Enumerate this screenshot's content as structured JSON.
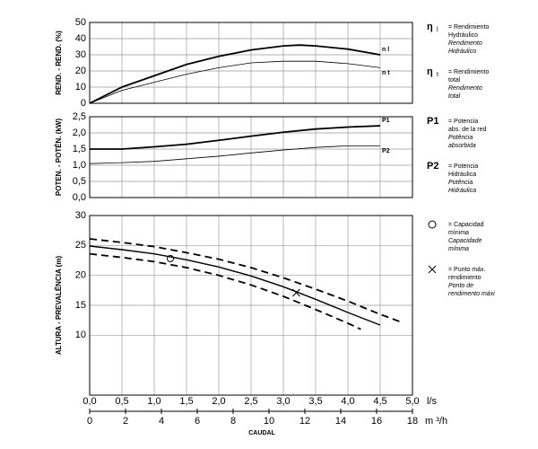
{
  "chart_data": [
    {
      "type": "line",
      "ylabel": "REND. - REND. (%)",
      "xlim": [
        0,
        5
      ],
      "xticks": [
        0,
        0.5,
        1,
        1.5,
        2,
        2.5,
        3,
        3.5,
        4,
        4.5,
        5
      ],
      "ylim": [
        0,
        50
      ],
      "yticks": [
        0,
        10,
        20,
        30,
        40,
        50
      ],
      "grid": true,
      "series": [
        {
          "name": "n l",
          "color": "#000000",
          "style": "bold",
          "x": [
            0,
            0.5,
            1,
            1.5,
            2,
            2.5,
            3,
            3.25,
            3.5,
            4,
            4.5
          ],
          "values": [
            0,
            10,
            17,
            24,
            29,
            33,
            35.5,
            36,
            35.5,
            33.5,
            30
          ]
        },
        {
          "name": "n t",
          "color": "#000000",
          "style": "thin",
          "x": [
            0,
            0.5,
            1,
            1.5,
            2,
            2.5,
            3,
            3.5,
            4,
            4.5
          ],
          "values": [
            0,
            8,
            13,
            18,
            22,
            25,
            26,
            26,
            24.5,
            22
          ]
        }
      ],
      "legend": [
        {
          "symbol": "η",
          "sub": "l",
          "lines": [
            "= Rendimiento",
            "Hydráulico",
            "Rendimento",
            "Hidráulico"
          ]
        },
        {
          "symbol": "η",
          "sub": "t",
          "lines": [
            "= Rendimiento",
            "total",
            "Rendimento",
            "total"
          ]
        }
      ]
    },
    {
      "type": "line",
      "ylabel": "POTEN. - POTÊN. (kW)",
      "xlim": [
        0,
        5
      ],
      "xticks": [
        0,
        0.5,
        1,
        1.5,
        2,
        2.5,
        3,
        3.5,
        4,
        4.5,
        5
      ],
      "ylim": [
        0,
        2.5
      ],
      "yticks": [
        {
          "value": 0,
          "label": "0,0"
        },
        {
          "value": 0.5,
          "label": "0,5"
        },
        {
          "value": 1,
          "label": "1,0"
        },
        {
          "value": 1.5,
          "label": "1,5"
        },
        {
          "value": 2,
          "label": "2,0"
        },
        {
          "value": 2.5,
          "label": "2,5"
        }
      ],
      "grid": true,
      "series": [
        {
          "name": "P1",
          "color": "#000000",
          "style": "bold",
          "x": [
            0,
            0.5,
            1,
            1.5,
            2,
            2.5,
            3,
            3.5,
            4,
            4.5
          ],
          "values": [
            1.5,
            1.5,
            1.57,
            1.65,
            1.77,
            1.9,
            2.02,
            2.12,
            2.18,
            2.22
          ]
        },
        {
          "name": "P2",
          "color": "#000000",
          "style": "thin",
          "x": [
            0,
            0.5,
            1,
            1.5,
            2,
            2.5,
            3,
            3.5,
            4,
            4.5
          ],
          "values": [
            1.05,
            1.08,
            1.12,
            1.2,
            1.28,
            1.38,
            1.47,
            1.55,
            1.6,
            1.6
          ]
        }
      ],
      "legend": [
        {
          "symbol": "P1",
          "lines": [
            "= Potencia",
            "abs. de la red",
            "Potência",
            "absorbida"
          ]
        },
        {
          "symbol": "P2",
          "lines": [
            "= Potencia",
            "Hidráulica",
            "Potência",
            "Hidráulica"
          ]
        }
      ]
    },
    {
      "type": "line",
      "ylabel": "ALTURA - PREVALÊNCIA (m)",
      "xlabel": "l/s",
      "x2label": "m ³/h",
      "caption": "CAUDAL",
      "xlim": [
        0,
        5
      ],
      "xticks": [
        {
          "value": 0,
          "label": "0,0"
        },
        {
          "value": 0.5,
          "label": "0,5"
        },
        {
          "value": 1,
          "label": "1,0"
        },
        {
          "value": 1.5,
          "label": "1,5"
        },
        {
          "value": 2,
          "label": "2,0"
        },
        {
          "value": 2.5,
          "label": "2,5"
        },
        {
          "value": 3,
          "label": "3,0"
        },
        {
          "value": 3.5,
          "label": "3,5"
        },
        {
          "value": 4,
          "label": "4,0"
        },
        {
          "value": 4.5,
          "label": "4,5"
        },
        {
          "value": 5,
          "label": "5,0"
        }
      ],
      "x2lim": [
        0,
        18
      ],
      "x2ticks": [
        0,
        2,
        4,
        6,
        8,
        10,
        12,
        14,
        16,
        18
      ],
      "ylim": [
        0,
        30
      ],
      "yticks": [
        10,
        15,
        20,
        25,
        30
      ],
      "grid": true,
      "series": [
        {
          "color": "#000000",
          "style": "solid",
          "x": [
            0,
            0.5,
            1,
            1.5,
            2,
            2.5,
            3,
            3.5,
            4,
            4.5
          ],
          "values": [
            24.9,
            24.3,
            23.6,
            22.6,
            21.4,
            19.9,
            18.1,
            16,
            13.8,
            11.7
          ]
        },
        {
          "color": "#000000",
          "style": "dashed",
          "x": [
            0,
            0.5,
            1,
            1.5,
            2,
            2.5,
            3,
            3.5,
            4,
            4.5,
            4.8
          ],
          "values": [
            26.1,
            25.5,
            24.8,
            23.8,
            22.7,
            21.3,
            19.6,
            17.7,
            15.7,
            13.5,
            12.3
          ]
        },
        {
          "color": "#000000",
          "style": "dashed",
          "x": [
            0,
            0.5,
            1,
            1.5,
            2,
            2.5,
            3,
            3.5,
            4,
            4.2
          ],
          "values": [
            23.6,
            23,
            22.3,
            21.3,
            20,
            18.4,
            16.5,
            14.3,
            12,
            11
          ]
        },
        {
          "color": "#000000",
          "style": "circle",
          "x": [
            1.25
          ],
          "values": [
            22.8
          ]
        },
        {
          "color": "#000000",
          "style": "cross",
          "x": [
            3.2
          ],
          "values": [
            17.1
          ]
        }
      ],
      "legend": [
        {
          "lines": [
            "= Capacidad",
            "mínima",
            "Capacidade",
            "mínima"
          ]
        },
        {
          "lines": [
            "= Punto máx.",
            "rendimiento",
            "Ponto de",
            "rendimento máxi"
          ]
        }
      ]
    }
  ]
}
